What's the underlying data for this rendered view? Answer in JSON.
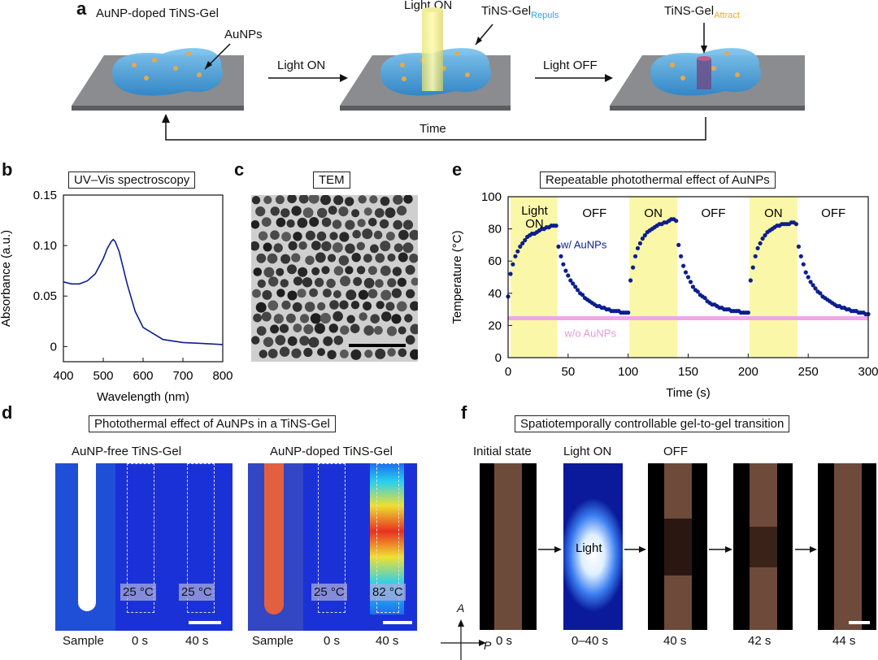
{
  "panel_a": {
    "letter": "a",
    "gel_label": "AuNP-doped TiNS-Gel",
    "aunps_label": "AuNPs",
    "light_on_top": "Light ON",
    "repuls_main": "TiNS-Gel",
    "repuls_sub": "Repuls",
    "attract_main": "TiNS-Gel",
    "attract_sub": "Attract",
    "arrow1": "Light ON",
    "arrow2": "Light OFF",
    "time": "Time",
    "colors": {
      "gel": "#4aa6e0",
      "repuls": "#29a9e8",
      "attract": "#f5a623",
      "plate": "#8a8c90"
    }
  },
  "panel_b": {
    "letter": "b",
    "title": "UV–Vis spectroscopy",
    "xlabel": "Wavelength (nm)",
    "ylabel": "Absorbance (a.u.)",
    "xticks": [
      "400",
      "500",
      "600",
      "700",
      "800"
    ],
    "yticks": [
      "0",
      "0.05",
      "0.10",
      "0.15"
    ]
  },
  "panel_c": {
    "letter": "c",
    "title": "TEM"
  },
  "panel_d": {
    "letter": "d",
    "title": "Photothermal effect of AuNPs in a TiNS-Gel",
    "left_label": "AuNP-free TiNS-Gel",
    "right_label": "AuNP-doped TiNS-Gel",
    "temps": [
      "25 °C",
      "25 °C",
      "25 °C",
      "82 °C"
    ],
    "bottom": [
      "Sample",
      "0 s",
      "40 s",
      "Sample",
      "0 s",
      "40 s"
    ]
  },
  "panel_e": {
    "letter": "e",
    "title": "Repeatable photothermal effect of AuNPs",
    "xlabel": "Time (s)",
    "ylabel": "Temperature (°C)",
    "xticks": [
      "0",
      "50",
      "100",
      "150",
      "200",
      "250",
      "300"
    ],
    "yticks": [
      "0",
      "20",
      "40",
      "60",
      "80",
      "100"
    ],
    "light_label_1": "Light",
    "light_label_2": "ON",
    "segment_labels": [
      "OFF",
      "ON",
      "OFF",
      "ON",
      "OFF"
    ],
    "series_with": "w/ AuNPs",
    "series_without": "w/o AuNPs",
    "colors": {
      "with": "#0d1f8c",
      "without": "#f2a6e6",
      "light": "#fbf7a8"
    }
  },
  "panel_f": {
    "letter": "f",
    "title": "Spatiotemporally controllable gel-to-gel transition",
    "headers": [
      "Initial state",
      "Light ON",
      "OFF"
    ],
    "light_text": "Light",
    "times": [
      "0 s",
      "0–40 s",
      "40 s",
      "42 s",
      "44 s"
    ],
    "axis_a": "A",
    "axis_p": "P"
  },
  "chart_data": [
    {
      "type": "line",
      "series": [
        {
          "x": [
            400,
            420,
            440,
            460,
            480,
            500,
            510,
            520,
            525,
            530,
            540,
            560,
            580,
            600,
            650,
            700,
            750,
            800
          ],
          "values": [
            0.064,
            0.062,
            0.062,
            0.065,
            0.072,
            0.087,
            0.097,
            0.104,
            0.106,
            0.104,
            0.094,
            0.062,
            0.035,
            0.019,
            0.007,
            0.004,
            0.003,
            0.002
          ]
        }
      ],
      "xlabel": "Wavelength (nm)",
      "ylabel": "Absorbance (a.u.)",
      "xlim": [
        400,
        800
      ],
      "ylim": [
        -0.015,
        0.15
      ],
      "grid": false
    },
    {
      "type": "scatter",
      "xlabel": "Time (s)",
      "ylabel": "Temperature (°C)",
      "xlim": [
        0,
        300
      ],
      "ylim": [
        0,
        100
      ],
      "light_on_intervals": [
        [
          2,
          41
        ],
        [
          101,
          141
        ],
        [
          201,
          241
        ]
      ],
      "series": [
        {
          "name": "w/ AuNPs",
          "x": [
            0,
            2,
            4,
            6,
            8,
            10,
            12,
            14,
            16,
            18,
            20,
            22,
            24,
            26,
            28,
            30,
            32,
            34,
            36,
            38,
            40,
            42,
            44,
            46,
            48,
            50,
            52,
            54,
            56,
            58,
            60,
            62,
            64,
            66,
            68,
            70,
            72,
            74,
            76,
            78,
            80,
            82,
            84,
            86,
            88,
            90,
            92,
            94,
            96,
            98,
            100,
            102,
            104,
            106,
            108,
            110,
            112,
            114,
            116,
            118,
            120,
            122,
            124,
            126,
            128,
            130,
            132,
            134,
            136,
            138,
            140,
            142,
            144,
            146,
            148,
            150,
            152,
            154,
            156,
            158,
            160,
            162,
            164,
            166,
            168,
            170,
            172,
            174,
            176,
            178,
            180,
            182,
            184,
            186,
            188,
            190,
            192,
            194,
            196,
            198,
            200,
            202,
            204,
            206,
            208,
            210,
            212,
            214,
            216,
            218,
            220,
            222,
            224,
            226,
            228,
            230,
            232,
            234,
            236,
            238,
            240,
            242,
            244,
            246,
            248,
            250,
            252,
            254,
            256,
            258,
            260,
            262,
            264,
            266,
            268,
            270,
            272,
            274,
            276,
            278,
            280,
            282,
            284,
            286,
            288,
            290,
            292,
            294,
            296,
            298,
            300
          ],
          "values": [
            38,
            52,
            58,
            63,
            66,
            69,
            71,
            73,
            75,
            76,
            77,
            77,
            78,
            79,
            80,
            80,
            81,
            81,
            82,
            82,
            82,
            69,
            63,
            58,
            54,
            51,
            48,
            46,
            44,
            42,
            40,
            39,
            37,
            36,
            35,
            34,
            33,
            32,
            32,
            31,
            31,
            30,
            30,
            29,
            29,
            29,
            29,
            28,
            28,
            28,
            28,
            48,
            56,
            63,
            68,
            71,
            74,
            76,
            78,
            79,
            80,
            81,
            82,
            83,
            83,
            84,
            84,
            85,
            86,
            86,
            85,
            70,
            63,
            57,
            53,
            50,
            47,
            44,
            42,
            41,
            39,
            38,
            37,
            35,
            34,
            33,
            33,
            32,
            31,
            31,
            30,
            30,
            30,
            29,
            29,
            29,
            29,
            28,
            28,
            28,
            28,
            48,
            56,
            63,
            68,
            71,
            74,
            76,
            78,
            79,
            80,
            81,
            82,
            82,
            83,
            83,
            83,
            83,
            84,
            84,
            83,
            69,
            63,
            58,
            53,
            50,
            47,
            45,
            43,
            41,
            40,
            38,
            37,
            36,
            35,
            34,
            33,
            32,
            32,
            31,
            31,
            30,
            30,
            29,
            29,
            29,
            28,
            28,
            28,
            27,
            27
          ]
        },
        {
          "name": "w/o AuNPs",
          "x": [
            0,
            50,
            100,
            150,
            200,
            250,
            300
          ],
          "values": [
            24.5,
            24.5,
            24.5,
            24.5,
            24.5,
            24.5,
            24.5
          ]
        }
      ],
      "grid": false
    }
  ]
}
